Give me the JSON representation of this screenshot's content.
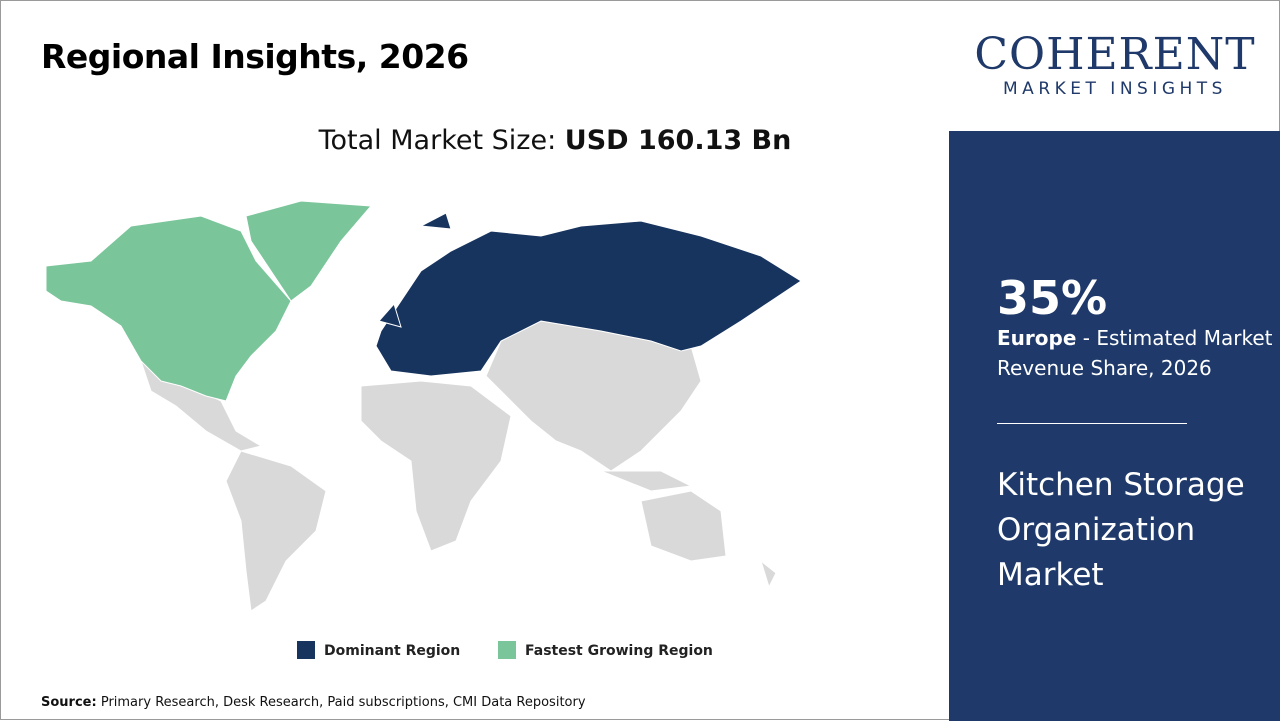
{
  "header": {
    "title": "Regional Insights, 2026",
    "market_size_label": "Total Market Size:",
    "market_size_value": "USD 160.13 Bn"
  },
  "legend": {
    "dominant": "Dominant Region",
    "fastest": "Fastest Growing Region"
  },
  "logo": {
    "top": "COHERENT",
    "bottom": "MARKET INSIGHTS"
  },
  "side": {
    "share": "35%",
    "region": "Europe",
    "share_text": " - Estimated Market Revenue Share, 2026",
    "market_name": "Kitchen Storage Organization Market"
  },
  "source": {
    "label": "Source:",
    "text": "Primary Research, Desk Research, Paid subscriptions, CMI Data Repository"
  }
}
